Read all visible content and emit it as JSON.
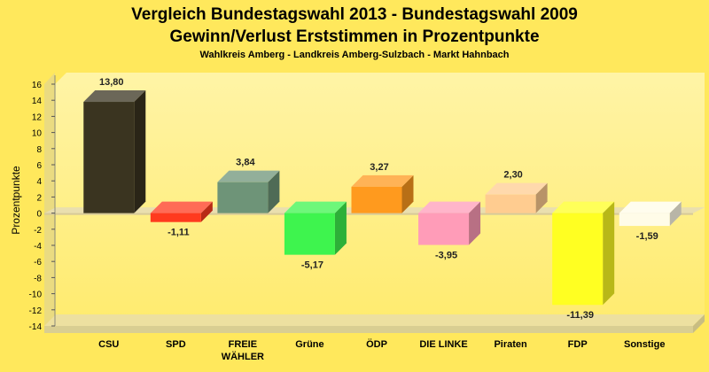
{
  "chart_data": {
    "type": "bar",
    "title": "Vergleich Bundestagswahl 2013 - Bundestagswahl 2009",
    "subtitle": "Gewinn/Verlust Erststimmen in Prozentpunkte",
    "subsubtitle": "Wahlkreis Amberg - Landkreis Amberg-Sulzbach - Markt Hahnbach",
    "xlabel": "",
    "ylabel": "Prozentpunkte",
    "ylim": [
      -14,
      16
    ],
    "yticks": [
      16,
      14,
      12,
      10,
      8,
      6,
      4,
      2,
      0,
      -2,
      -4,
      -6,
      -8,
      -10,
      -12,
      -14
    ],
    "grid": false,
    "categories": [
      [
        "CSU"
      ],
      [
        "SPD"
      ],
      [
        "FREIE",
        "WÄHLER"
      ],
      [
        "Grüne"
      ],
      [
        "ÖDP"
      ],
      [
        "DIE LINKE"
      ],
      [
        "Piraten"
      ],
      [
        "FDP"
      ],
      [
        "Sonstige"
      ]
    ],
    "values": [
      13.8,
      -1.11,
      3.84,
      -5.17,
      3.27,
      -3.95,
      2.3,
      -11.39,
      -1.59
    ],
    "value_labels": [
      "13,80",
      "-1,11",
      "3,84",
      "-5,17",
      "3,27",
      "-3,95",
      "2,30",
      "-11,39",
      "-1,59"
    ],
    "colors": [
      "#3A3420",
      "#FF3A1E",
      "#6E9478",
      "#3EF44E",
      "#FF9A1E",
      "#FF9CB8",
      "#FFCC90",
      "#FFFF22",
      "#FFFCE8"
    ]
  }
}
